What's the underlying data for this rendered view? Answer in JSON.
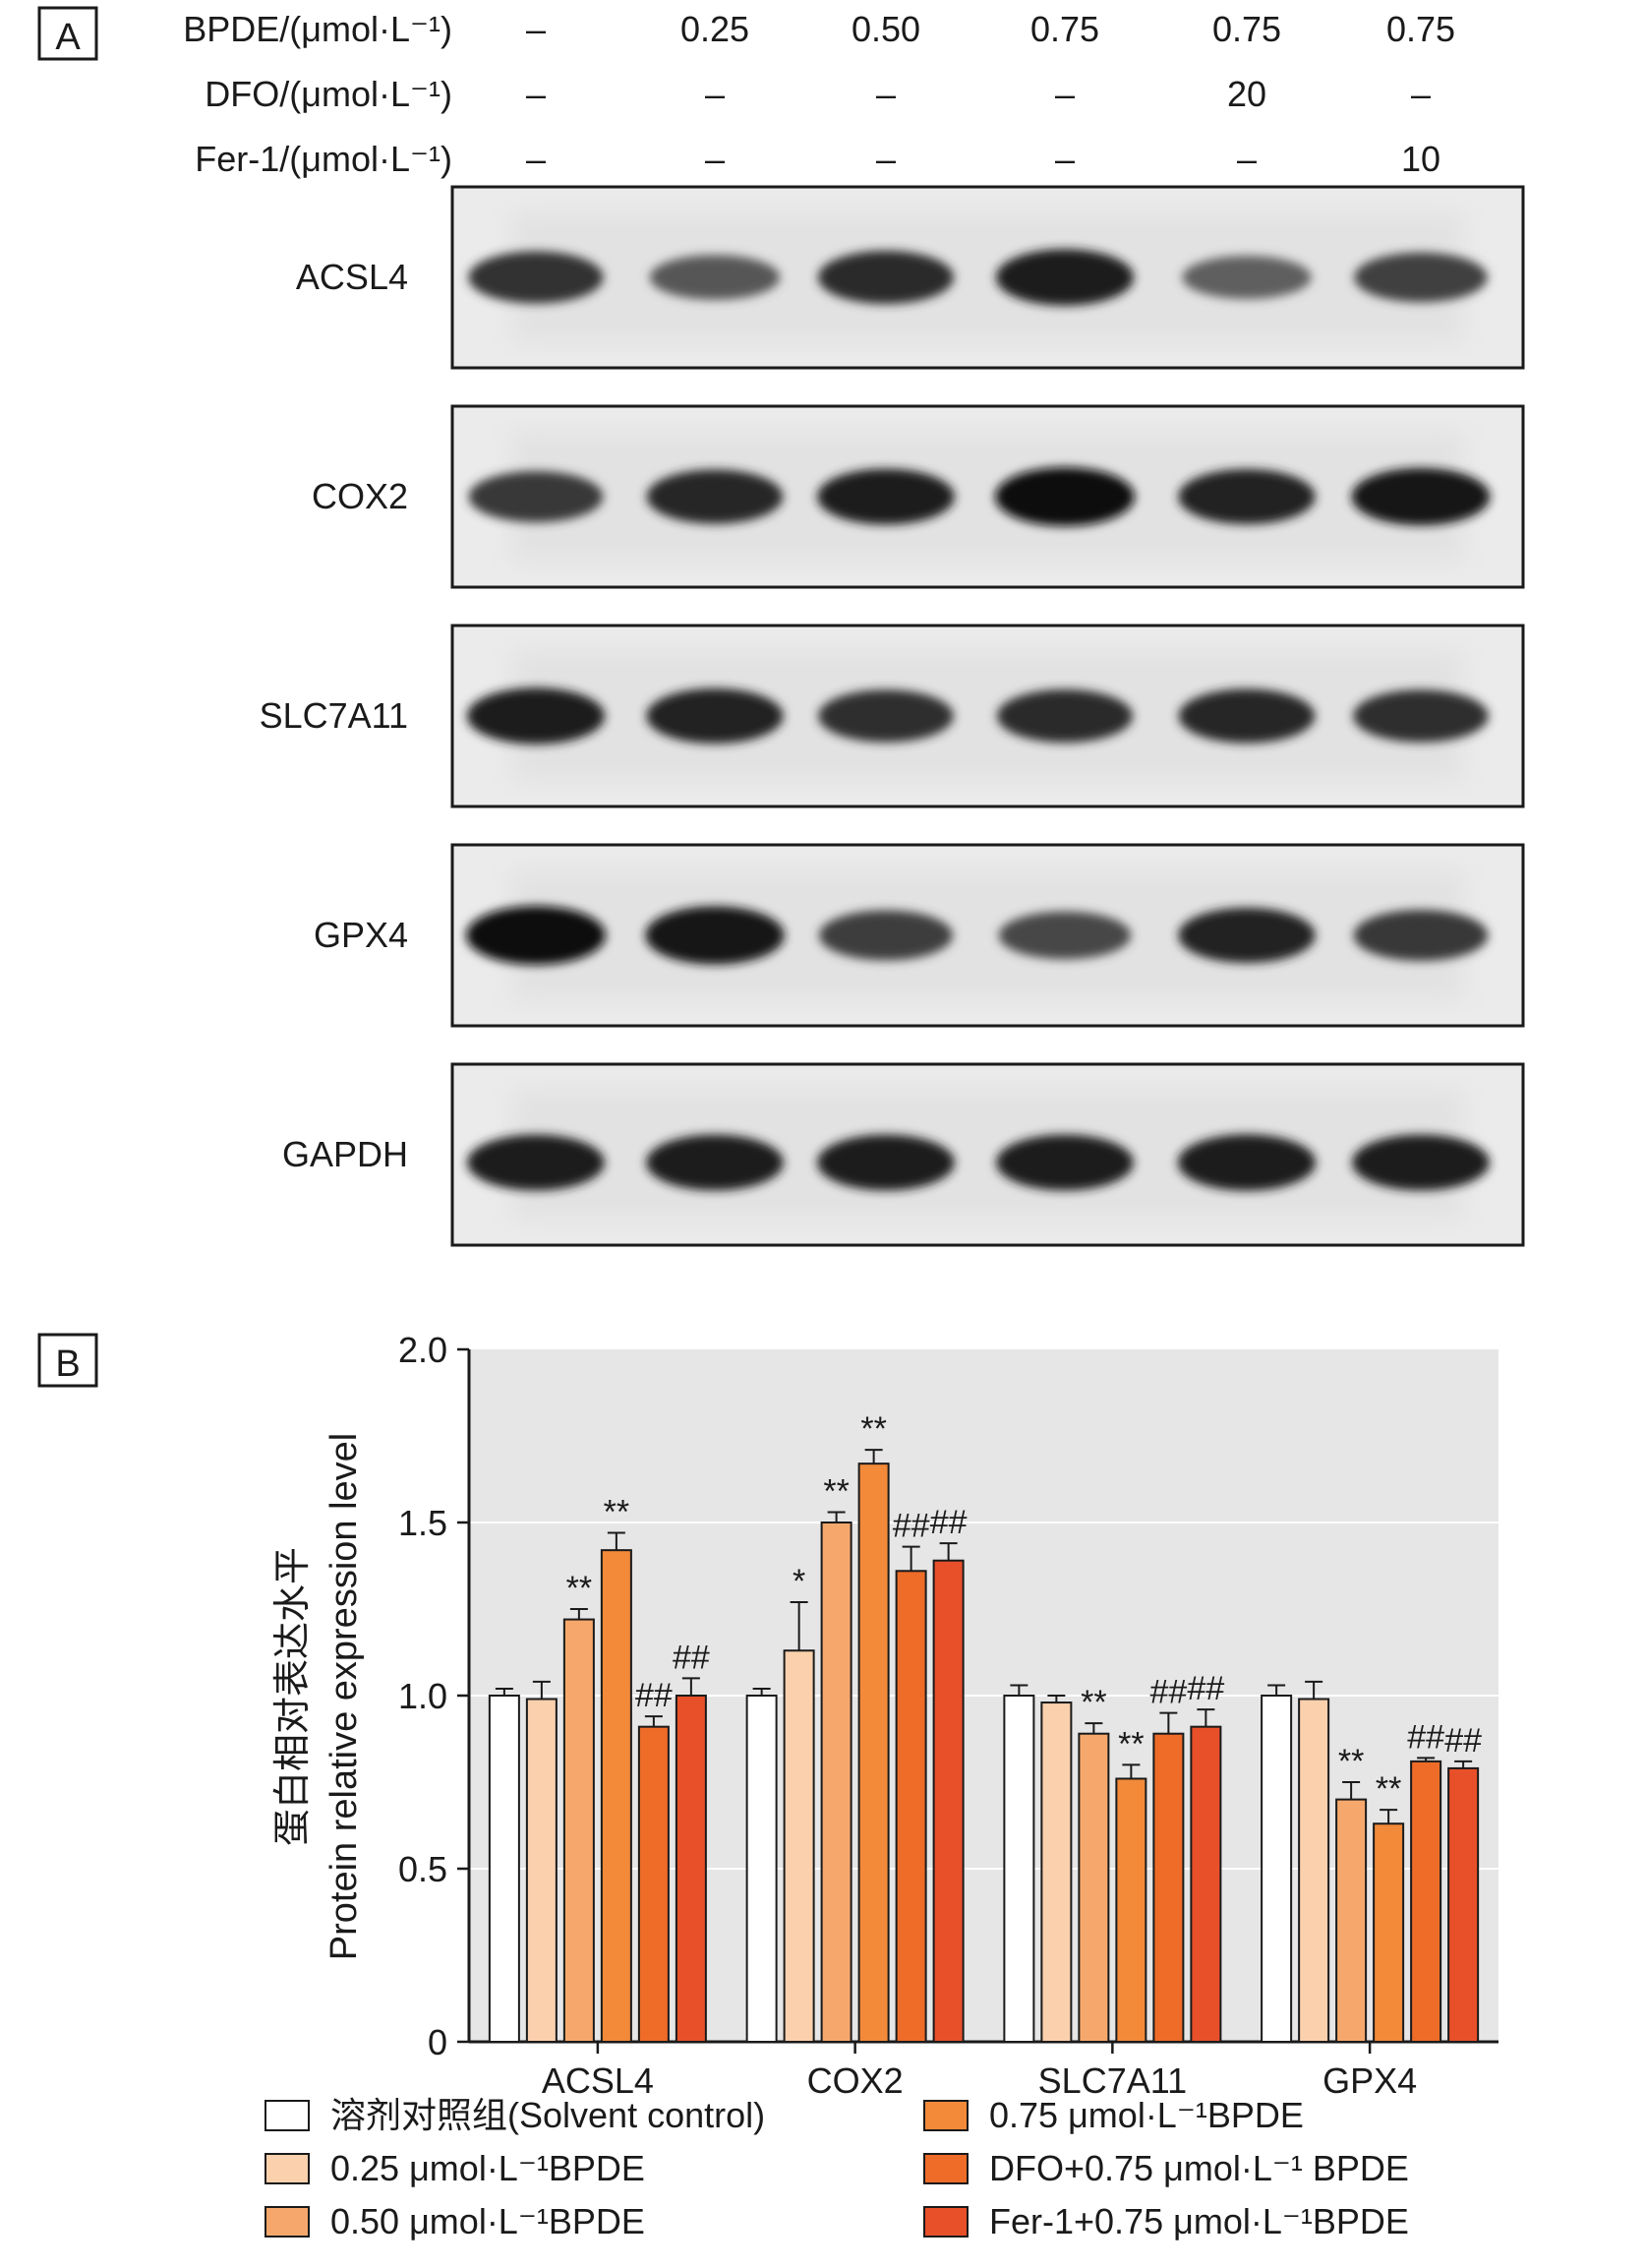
{
  "panel_a": {
    "panel_label": "A",
    "treatment_rows": [
      {
        "label": "BPDE/(μmol·L⁻¹)",
        "values": [
          "–",
          "0.25",
          "0.50",
          "0.75",
          "0.75",
          "0.75"
        ]
      },
      {
        "label": "DFO/(μmol·L⁻¹)",
        "values": [
          "–",
          "–",
          "–",
          "–",
          "20",
          "–"
        ]
      },
      {
        "label": "Fer-1/(μmol·L⁻¹)",
        "values": [
          "–",
          "–",
          "–",
          "–",
          "–",
          "10"
        ]
      }
    ],
    "blots": [
      {
        "protein": "ACSL4",
        "band_intensity": [
          0.78,
          0.55,
          0.82,
          0.92,
          0.5,
          0.7
        ]
      },
      {
        "protein": "COX2",
        "band_intensity": [
          0.75,
          0.85,
          0.9,
          1.0,
          0.88,
          0.95
        ]
      },
      {
        "protein": "SLC7A11",
        "band_intensity": [
          0.92,
          0.88,
          0.8,
          0.82,
          0.85,
          0.8
        ]
      },
      {
        "protein": "GPX4",
        "band_intensity": [
          1.0,
          0.98,
          0.72,
          0.65,
          0.88,
          0.75
        ]
      },
      {
        "protein": "GAPDH",
        "band_intensity": [
          0.9,
          0.9,
          0.9,
          0.9,
          0.92,
          0.9
        ]
      }
    ]
  },
  "panel_b": {
    "panel_label": "B"
  },
  "chart_data": {
    "type": "bar",
    "ylabel_cn": "蛋白相对表达水平",
    "ylabel_en": "Protein relative expression level",
    "ylim": [
      0,
      2.0
    ],
    "yticks": [
      0,
      0.5,
      1.0,
      1.5,
      2.0
    ],
    "ytick_labels": [
      "0",
      "0.5",
      "1.0",
      "1.5",
      "2.0"
    ],
    "grid": true,
    "legend_position": "bottom",
    "categories": [
      "ACSL4",
      "COX2",
      "SLC7A11",
      "GPX4"
    ],
    "series": [
      {
        "name": "溶剂对照组(Solvent control)",
        "color": "#ffffff",
        "values": [
          1.0,
          1.0,
          1.0,
          1.0
        ],
        "errors": [
          0.02,
          0.02,
          0.03,
          0.03
        ],
        "annotations": [
          "",
          "",
          "",
          ""
        ]
      },
      {
        "name": "0.25 μmol·L⁻¹BPDE",
        "color": "#fbd0ad",
        "values": [
          0.99,
          1.13,
          0.98,
          0.99
        ],
        "errors": [
          0.05,
          0.14,
          0.02,
          0.05
        ],
        "annotations": [
          "",
          "*",
          "",
          ""
        ]
      },
      {
        "name": "0.50 μmol·L⁻¹BPDE",
        "color": "#f6a86c",
        "values": [
          1.22,
          1.5,
          0.89,
          0.7
        ],
        "errors": [
          0.03,
          0.03,
          0.03,
          0.05
        ],
        "annotations": [
          "**",
          "**",
          "**",
          "**"
        ]
      },
      {
        "name": "0.75 μmol·L⁻¹BPDE",
        "color": "#f28a3a",
        "values": [
          1.42,
          1.67,
          0.76,
          0.63
        ],
        "errors": [
          0.05,
          0.04,
          0.04,
          0.04
        ],
        "annotations": [
          "**",
          "**",
          "**",
          "**"
        ]
      },
      {
        "name": "DFO+0.75 μmol·L⁻¹  BPDE",
        "color": "#ee6c28",
        "values": [
          0.91,
          1.36,
          0.89,
          0.81
        ],
        "errors": [
          0.03,
          0.07,
          0.06,
          0.01
        ],
        "annotations": [
          "##",
          "##",
          "##",
          "##"
        ]
      },
      {
        "name": "Fer-1+0.75 μmol·L⁻¹BPDE",
        "color": "#e8502a",
        "values": [
          1.0,
          1.39,
          0.91,
          0.79
        ],
        "errors": [
          0.05,
          0.05,
          0.05,
          0.02
        ],
        "annotations": [
          "##",
          "##",
          "##",
          "##"
        ]
      }
    ]
  }
}
